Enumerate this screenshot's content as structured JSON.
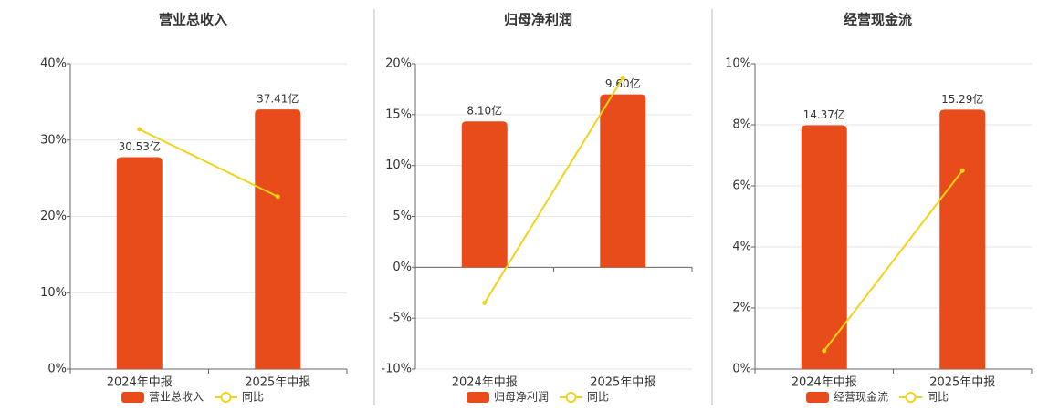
{
  "chart_data": [
    {
      "type": "combo",
      "title": "营业总收入",
      "categories": [
        "2024年中报",
        "2025年中报"
      ],
      "series": [
        {
          "name": "营业总收入",
          "type": "bar",
          "axis": "y2",
          "color": "#e84c1a",
          "values": [
            30.53,
            37.41
          ],
          "value_labels": [
            "30.53亿",
            "37.41亿"
          ]
        },
        {
          "name": "同比",
          "type": "line",
          "color": "#f2d21b",
          "values": [
            31.4,
            22.6
          ]
        }
      ],
      "ylim": [
        0,
        40
      ],
      "yticks": [
        {
          "value": 0,
          "label": "0%"
        },
        {
          "value": 10,
          "label": "10%"
        },
        {
          "value": 20,
          "label": "20%"
        },
        {
          "value": 30,
          "label": "30%"
        },
        {
          "value": 40,
          "label": "40%"
        }
      ],
      "y2lim": [
        0,
        44
      ],
      "grid": true,
      "legend": "bottom"
    },
    {
      "type": "combo",
      "title": "归母净利润",
      "categories": [
        "2024年中报",
        "2025年中报"
      ],
      "series": [
        {
          "name": "归母净利润",
          "type": "bar",
          "axis": "y2",
          "color": "#e84c1a",
          "values": [
            8.1,
            9.6
          ],
          "value_labels": [
            "8.10亿",
            "9.60亿"
          ]
        },
        {
          "name": "同比",
          "type": "line",
          "color": "#f2d21b",
          "values": [
            -3.5,
            18.6
          ]
        }
      ],
      "ylim": [
        -10,
        20
      ],
      "yticks": [
        {
          "value": -10,
          "label": "-10%"
        },
        {
          "value": -5,
          "label": "-5%"
        },
        {
          "value": 0,
          "label": "0%"
        },
        {
          "value": 5,
          "label": "5%"
        },
        {
          "value": 10,
          "label": "10%"
        },
        {
          "value": 15,
          "label": "15%"
        },
        {
          "value": 20,
          "label": "20%"
        }
      ],
      "y2lim": [
        -5.65,
        11.3
      ],
      "grid": true,
      "legend": "bottom"
    },
    {
      "type": "combo",
      "title": "经营现金流",
      "categories": [
        "2024年中报",
        "2025年中报"
      ],
      "series": [
        {
          "name": "经营现金流",
          "type": "bar",
          "axis": "y2",
          "color": "#e84c1a",
          "values": [
            14.37,
            15.29
          ],
          "value_labels": [
            "14.37亿",
            "15.29亿"
          ]
        },
        {
          "name": "同比",
          "type": "line",
          "color": "#f2d21b",
          "values": [
            0.6,
            6.5
          ]
        }
      ],
      "ylim": [
        0,
        10
      ],
      "yticks": [
        {
          "value": 0,
          "label": "0%"
        },
        {
          "value": 2,
          "label": "2%"
        },
        {
          "value": 4,
          "label": "4%"
        },
        {
          "value": 6,
          "label": "6%"
        },
        {
          "value": 8,
          "label": "8%"
        },
        {
          "value": 10,
          "label": "10%"
        }
      ],
      "y2lim": [
        0,
        18
      ],
      "grid": true,
      "legend": "bottom"
    }
  ]
}
